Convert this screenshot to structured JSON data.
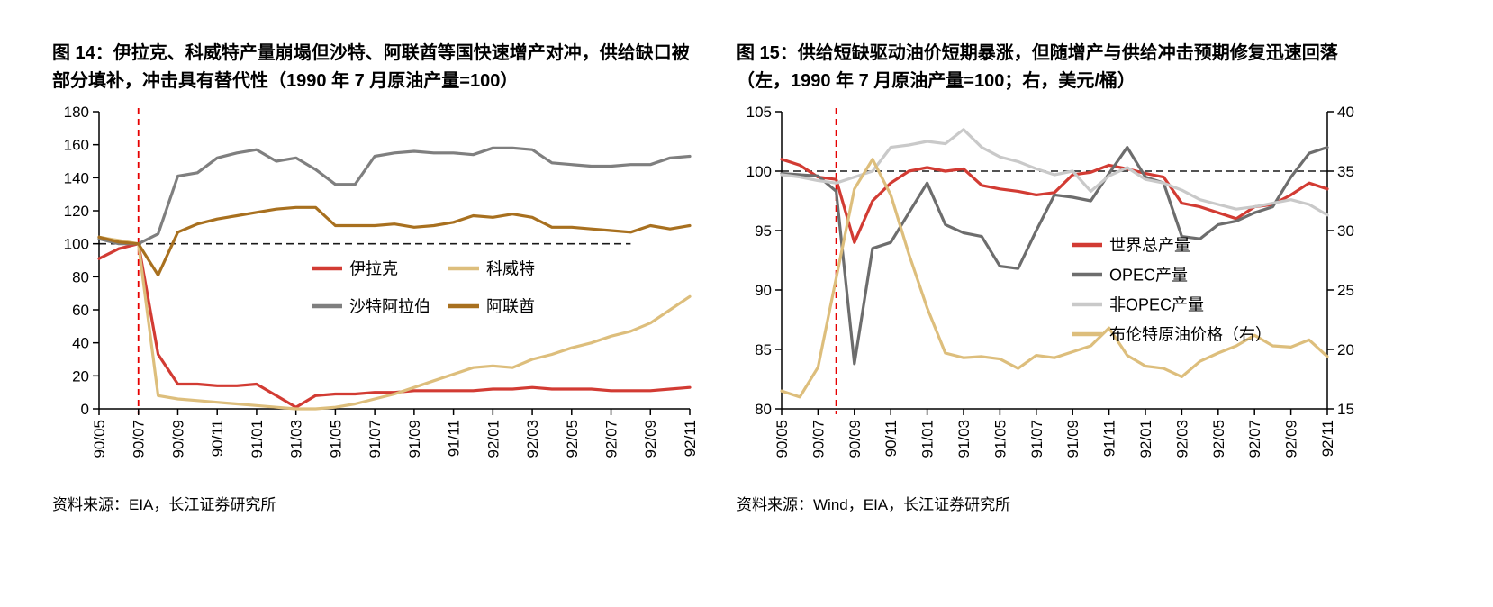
{
  "figures": [
    {
      "title": "图 14：伊拉克、科威特产量崩塌但沙特、阿联酋等国快速增产对冲，供给缺口被部分填补，冲击具有替代性（1990 年 7 月原油产量=100）",
      "source": "资料来源：EIA，长江证券研究所"
    },
    {
      "title": "图 15：供给短缺驱动油价短期暴涨，但随增产与供给冲击预期修复迅速回落（左，1990 年 7 月原油产量=100；右，美元/桶）",
      "source": "资料来源：Wind，EIA，长江证券研究所"
    }
  ],
  "colors": {
    "red": "#d23b33",
    "tan": "#ddbe7c",
    "gray": "#7f7f7f",
    "brown": "#a8701f",
    "dark_gray": "#6d6d6d",
    "light_gray": "#c9c9c9",
    "reference_black": "#1a1a1a",
    "reference_red": "#e60000"
  },
  "chart_data": [
    {
      "type": "line",
      "title": "伊拉克、科威特产量崩塌但沙特、阿联酋等国快速增产对冲（1990年7月原油产量=100）",
      "x": [
        "90/05",
        "90/06",
        "90/07",
        "90/08",
        "90/09",
        "90/10",
        "90/11",
        "90/12",
        "91/01",
        "91/02",
        "91/03",
        "91/04",
        "91/05",
        "91/06",
        "91/07",
        "91/08",
        "91/09",
        "91/10",
        "91/11",
        "91/12",
        "92/01",
        "92/02",
        "92/03",
        "92/04",
        "92/05",
        "92/06",
        "92/07",
        "92/08",
        "92/09",
        "92/10",
        "92/11"
      ],
      "x_tick_labels": [
        "90/05",
        "90/07",
        "90/09",
        "90/11",
        "91/01",
        "91/03",
        "91/05",
        "91/07",
        "91/09",
        "91/11",
        "92/01",
        "92/03",
        "92/05",
        "92/07",
        "92/09",
        "92/11"
      ],
      "y_left": {
        "lim": [
          0,
          180
        ],
        "ticks": [
          0,
          20,
          40,
          60,
          80,
          100,
          120,
          140,
          160,
          180
        ]
      },
      "grid": false,
      "legend_position": "inside-center",
      "reference": {
        "h_dashed": 100,
        "v_dashed_x": "90/07"
      },
      "series": [
        {
          "name": "伊拉克",
          "color": "#d23b33",
          "axis": "left",
          "values": [
            91,
            97,
            100,
            33,
            15,
            15,
            14,
            14,
            15,
            8,
            1,
            8,
            9,
            9,
            10,
            10,
            11,
            11,
            11,
            11,
            12,
            12,
            13,
            12,
            12,
            12,
            11,
            11,
            11,
            12,
            13
          ]
        },
        {
          "name": "科威特",
          "color": "#ddbe7c",
          "axis": "left",
          "values": [
            104,
            102,
            100,
            8,
            6,
            5,
            4,
            3,
            2,
            1,
            0,
            0,
            1,
            3,
            6,
            9,
            13,
            17,
            21,
            25,
            26,
            25,
            30,
            33,
            37,
            40,
            44,
            47,
            52,
            60,
            68
          ]
        },
        {
          "name": "沙特阿拉伯",
          "color": "#7f7f7f",
          "axis": "left",
          "values": [
            103,
            100,
            100,
            106,
            141,
            143,
            152,
            155,
            157,
            150,
            152,
            145,
            136,
            136,
            153,
            155,
            156,
            155,
            155,
            154,
            158,
            158,
            157,
            149,
            148,
            147,
            147,
            148,
            148,
            152,
            153
          ]
        },
        {
          "name": "阿联酋",
          "color": "#a8701f",
          "axis": "left",
          "values": [
            104,
            101,
            100,
            81,
            107,
            112,
            115,
            117,
            119,
            121,
            122,
            122,
            111,
            111,
            111,
            112,
            110,
            111,
            113,
            117,
            116,
            118,
            116,
            110,
            110,
            109,
            108,
            107,
            111,
            109,
            111
          ]
        }
      ]
    },
    {
      "type": "line",
      "title": "供给短缺驱动油价短期暴涨，但随增产与供给冲击预期修复迅速回落（左：1990年7月原油产量=100；右：美元/桶）",
      "x": [
        "90/05",
        "90/06",
        "90/07",
        "90/08",
        "90/09",
        "90/10",
        "90/11",
        "90/12",
        "91/01",
        "91/02",
        "91/03",
        "91/04",
        "91/05",
        "91/06",
        "91/07",
        "91/08",
        "91/09",
        "91/10",
        "91/11",
        "91/12",
        "92/01",
        "92/02",
        "92/03",
        "92/04",
        "92/05",
        "92/06",
        "92/07",
        "92/08",
        "92/09",
        "92/10",
        "92/11"
      ],
      "x_tick_labels": [
        "90/05",
        "90/07",
        "90/09",
        "90/11",
        "91/01",
        "91/03",
        "91/05",
        "91/07",
        "91/09",
        "91/11",
        "92/01",
        "92/03",
        "92/05",
        "92/07",
        "92/09",
        "92/11"
      ],
      "y_left": {
        "lim": [
          80,
          105
        ],
        "ticks": [
          80,
          85,
          90,
          95,
          100,
          105
        ]
      },
      "y_right": {
        "lim": [
          15,
          40
        ],
        "ticks": [
          15,
          20,
          25,
          30,
          35,
          40
        ]
      },
      "grid": false,
      "legend_position": "inside-right",
      "reference": {
        "h_dashed": 100,
        "v_dashed_x": "90/08"
      },
      "series": [
        {
          "name": "世界总产量",
          "color": "#d23b33",
          "axis": "left",
          "values": [
            101,
            100.5,
            99.5,
            99.3,
            94,
            97.5,
            99,
            100,
            100.3,
            100,
            100.2,
            98.8,
            98.5,
            98.3,
            98,
            98.2,
            99.7,
            99.9,
            100.5,
            100.2,
            99.8,
            99.5,
            97.3,
            97,
            96.5,
            96,
            97,
            97.2,
            98,
            99,
            98.5
          ]
        },
        {
          "name": "OPEC产量",
          "color": "#6d6d6d",
          "axis": "left",
          "values": [
            99.8,
            99.7,
            99.6,
            98.3,
            83.8,
            93.5,
            94,
            96.5,
            99,
            95.5,
            94.8,
            94.5,
            92,
            91.8,
            95,
            98,
            97.8,
            97.5,
            99.8,
            102,
            99.5,
            99,
            94.5,
            94.3,
            95.5,
            95.8,
            96.5,
            97,
            99.5,
            101.5,
            102
          ]
        },
        {
          "name": "非OPEC产量",
          "color": "#c9c9c9",
          "axis": "left",
          "values": [
            99.7,
            99.5,
            99.2,
            99,
            99.5,
            100,
            102,
            102.2,
            102.5,
            102.3,
            103.5,
            102,
            101.2,
            100.8,
            100.2,
            99.7,
            100,
            98.3,
            99.6,
            100.3,
            99.3,
            99,
            98.4,
            97.6,
            97.2,
            96.8,
            97,
            97.3,
            97.6,
            97.2,
            96.3
          ]
        },
        {
          "name": "布伦特原油价格（右）",
          "color": "#ddbe7c",
          "axis": "right",
          "values": [
            16.5,
            16,
            18.5,
            26,
            33.5,
            36,
            33,
            28,
            23.5,
            19.7,
            19.3,
            19.4,
            19.2,
            18.4,
            19.5,
            19.3,
            19.8,
            20.3,
            21.8,
            19.5,
            18.6,
            18.4,
            17.7,
            19,
            19.7,
            20.3,
            21.2,
            20.3,
            20.2,
            20.8,
            19.4
          ]
        }
      ]
    }
  ]
}
